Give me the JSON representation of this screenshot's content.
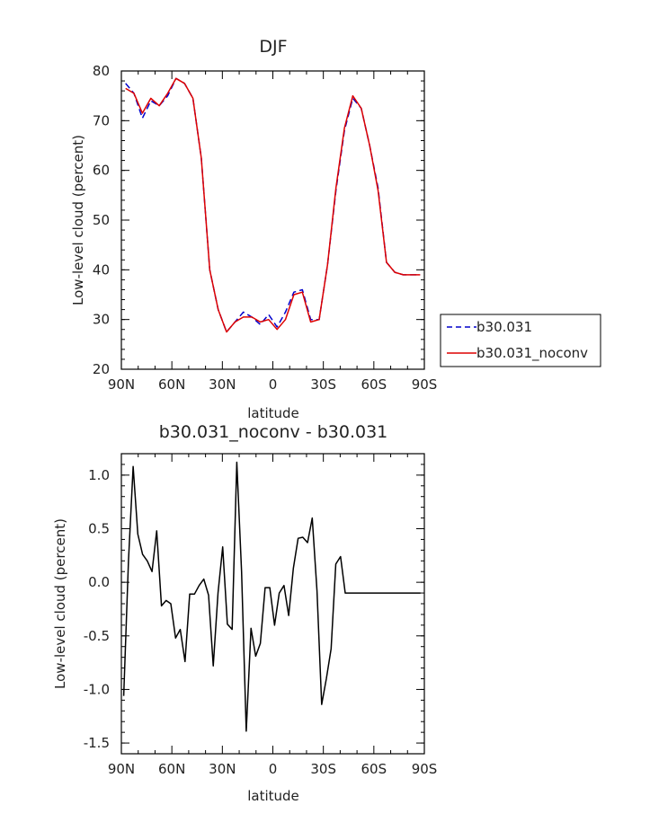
{
  "chart_data": [
    {
      "type": "line",
      "title": "DJF",
      "xlabel": "latitude",
      "ylabel": "Low-level cloud (percent)",
      "xlim": [
        -90,
        90
      ],
      "ylim": [
        20,
        80
      ],
      "x_ticks": [
        -90,
        -60,
        -30,
        0,
        30,
        60,
        90
      ],
      "x_tick_labels": [
        "90N",
        "60N",
        "30N",
        "0",
        "30S",
        "60S",
        "90S"
      ],
      "y_ticks": [
        20,
        30,
        40,
        50,
        60,
        70,
        80
      ],
      "y_tick_labels": [
        "20",
        "30",
        "40",
        "50",
        "60",
        "70",
        "80"
      ],
      "legend_position": "right",
      "x": [
        -87.5,
        -82.5,
        -77.5,
        -72.5,
        -67.5,
        -62.5,
        -57.5,
        -52.5,
        -47.5,
        -42.5,
        -37.5,
        -32.5,
        -27.5,
        -22.5,
        -17.5,
        -12.5,
        -7.5,
        -2.5,
        2.5,
        7.5,
        12.5,
        17.5,
        22.5,
        27.5,
        32.5,
        37.5,
        42.5,
        47.5,
        52.5,
        57.5,
        62.5,
        67.5,
        72.5,
        77.5,
        82.5,
        87.5
      ],
      "series": [
        {
          "name": "b30.031",
          "color": "#0000cc",
          "dash": "dashed",
          "values": [
            77.5,
            75.5,
            70.5,
            74.0,
            73.0,
            75.0,
            78.5,
            77.5,
            74.5,
            62.5,
            40.0,
            32.0,
            27.5,
            29.5,
            31.5,
            30.5,
            29.0,
            31.0,
            28.5,
            31.5,
            35.5,
            36.0,
            30.0,
            30.0,
            41.0,
            56.0,
            68.0,
            74.5,
            72.5,
            65.0,
            56.5,
            41.5,
            39.5,
            39.0,
            39.0,
            39.0
          ]
        },
        {
          "name": "b30.031_noconv",
          "color": "#dd0000",
          "dash": "solid",
          "values": [
            76.5,
            75.5,
            71.5,
            74.5,
            73.0,
            75.5,
            78.5,
            77.5,
            74.5,
            62.5,
            40.0,
            32.0,
            27.5,
            29.5,
            30.5,
            30.5,
            29.5,
            30.0,
            28.0,
            30.0,
            35.0,
            35.5,
            29.5,
            30.0,
            41.0,
            56.5,
            68.5,
            75.0,
            72.5,
            65.0,
            56.0,
            41.5,
            39.5,
            39.0,
            39.0,
            39.0
          ]
        }
      ]
    },
    {
      "type": "line",
      "title": "b30.031_noconv - b30.031",
      "xlabel": "latitude",
      "ylabel": "Low-level cloud (percent)",
      "xlim": [
        -90,
        90
      ],
      "ylim": [
        -1.6,
        1.2
      ],
      "x_ticks": [
        -90,
        -60,
        -30,
        0,
        30,
        60,
        90
      ],
      "x_tick_labels": [
        "90N",
        "60N",
        "30N",
        "0",
        "30S",
        "60S",
        "90S"
      ],
      "y_ticks": [
        -1.5,
        -1.0,
        -0.5,
        0.0,
        0.5,
        1.0
      ],
      "y_tick_labels": [
        "-1.5",
        "-1.0",
        "-0.5",
        "0.0",
        "0.5",
        "1.0"
      ],
      "x": [
        -88.6,
        -85.8,
        -83.0,
        -80.2,
        -77.4,
        -74.6,
        -71.8,
        -69.0,
        -66.2,
        -63.4,
        -60.6,
        -57.8,
        -55.0,
        -52.2,
        -49.4,
        -46.6,
        -43.8,
        -41.0,
        -38.2,
        -35.4,
        -32.6,
        -29.8,
        -27.0,
        -24.2,
        -21.4,
        -18.6,
        -15.8,
        -13.0,
        -10.2,
        -7.4,
        -4.6,
        -1.8,
        1.0,
        3.8,
        6.6,
        9.4,
        12.2,
        15.0,
        17.8,
        20.6,
        23.4,
        26.2,
        29.0,
        31.8,
        34.6,
        37.4,
        40.2,
        43.0,
        45.8,
        48.6,
        51.4,
        54.2,
        57.0,
        59.8,
        62.6,
        65.4,
        68.2,
        71.0,
        73.8,
        76.6,
        79.4,
        82.2,
        85.0,
        87.8
      ],
      "series": [
        {
          "name": "",
          "color": "#000000",
          "dash": "solid",
          "values": [
            -1.06,
            0.2,
            1.08,
            0.45,
            0.26,
            0.2,
            0.1,
            0.48,
            -0.22,
            -0.17,
            -0.2,
            -0.52,
            -0.44,
            -0.74,
            -0.11,
            -0.11,
            -0.03,
            0.03,
            -0.12,
            -0.78,
            -0.1,
            0.33,
            -0.39,
            -0.44,
            1.12,
            0.1,
            -1.39,
            -0.43,
            -0.69,
            -0.57,
            -0.05,
            -0.05,
            -0.4,
            -0.1,
            -0.03,
            -0.31,
            0.13,
            0.41,
            0.42,
            0.37,
            0.6,
            -0.08,
            -1.14,
            -0.9,
            -0.62,
            0.17,
            0.24,
            -0.1,
            -0.1,
            -0.1,
            -0.1,
            -0.1,
            -0.1,
            -0.1,
            -0.1,
            -0.1,
            -0.1,
            -0.1,
            -0.1,
            -0.1,
            -0.1,
            -0.1,
            -0.1,
            -0.1
          ]
        }
      ]
    }
  ]
}
